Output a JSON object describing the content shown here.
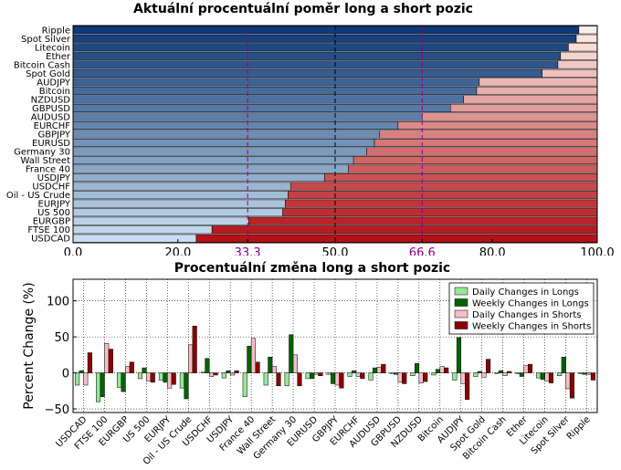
{
  "chart_data": [
    {
      "type": "bar",
      "orientation": "horizontal",
      "stacked": true,
      "title": "Aktuální procentuální poměr long a short pozic",
      "categories": [
        "Ripple",
        "Spot Silver",
        "Litecoin",
        "Ether",
        "Bitcoin Cash",
        "Spot Gold",
        "AUDJPY",
        "Bitcoin",
        "NZDUSD",
        "GBPUSD",
        "AUDUSD",
        "EURCHF",
        "GBPJPY",
        "EURUSD",
        "Germany 30",
        "Wall Street",
        "France 40",
        "USDJPY",
        "USDCHF",
        "Oil - US Crude",
        "EURJPY",
        "US 500",
        "EURGBP",
        "FTSE 100",
        "USDCAD"
      ],
      "series": [
        {
          "role": "long",
          "values": [
            96.5,
            96.0,
            94.5,
            93.0,
            92.5,
            89.5,
            77.5,
            77.0,
            74.5,
            72.0,
            66.6,
            62.0,
            58.5,
            57.5,
            56.0,
            53.5,
            52.5,
            48.0,
            41.5,
            41.0,
            40.5,
            40.0,
            33.5,
            26.5,
            23.5
          ]
        },
        {
          "role": "short",
          "values": [
            3.5,
            4.0,
            5.5,
            7.0,
            7.5,
            10.5,
            22.5,
            23.0,
            25.5,
            28.0,
            33.4,
            38.0,
            41.5,
            42.5,
            44.0,
            46.5,
            47.5,
            52.0,
            58.5,
            59.0,
            59.5,
            60.0,
            66.5,
            73.5,
            76.5
          ]
        }
      ],
      "xlim": [
        0,
        100
      ],
      "xticks": [
        "0.0",
        "20.0",
        "33.3",
        "50.0",
        "66.6",
        "80.0",
        "100.0"
      ],
      "reference_lines": [
        33.3,
        50.0,
        66.6
      ],
      "reference_colors": {
        "33.3": "#8b008b",
        "50.0": "#000000",
        "66.6": "#8b008b"
      }
    },
    {
      "type": "bar",
      "title": "Procentuální změna long a short pozic",
      "ylabel": "Percent Change (%)",
      "ylim": [
        -55,
        130
      ],
      "yticks": [
        "−50",
        "0",
        "50",
        "100"
      ],
      "grid": true,
      "legend_position": "top-right",
      "categories": [
        "USDCAD",
        "FTSE 100",
        "EURGBP",
        "US 500",
        "EURJPY",
        "Oil - US Crude",
        "USDCHF",
        "USDJPY",
        "France 40",
        "Wall Street",
        "Germany 30",
        "EURUSD",
        "GBPJPY",
        "EURCHF",
        "AUDUSD",
        "GBPUSD",
        "NZDUSD",
        "Bitcoin",
        "AUDJPY",
        "Spot Gold",
        "Bitcoin Cash",
        "Ether",
        "Litecoin",
        "Spot Silver",
        "Ripple"
      ],
      "series": [
        {
          "name": "Daily Changes in Longs",
          "color": "#98e69a",
          "values": [
            -17,
            -40,
            -20,
            -8,
            -10,
            -21,
            1,
            -7,
            -33,
            -17,
            -18,
            -8,
            -2,
            -5,
            -10,
            -1,
            -4,
            -3,
            -10,
            -5,
            -1,
            -1,
            -7,
            -4,
            -1
          ]
        },
        {
          "name": "Weekly Changes in Longs",
          "color": "#006400",
          "values": [
            3,
            -33,
            -26,
            7,
            -13,
            -36,
            20,
            3,
            37,
            22,
            53,
            -8,
            -15,
            3,
            7,
            -2,
            13,
            5,
            49,
            2,
            3,
            -5,
            -9,
            22,
            -2
          ]
        },
        {
          "name": "Daily Changes in Shorts",
          "color": "#f4bfc8",
          "values": [
            -17,
            41,
            9,
            -11,
            -21,
            39,
            -5,
            -3,
            48,
            9,
            25,
            -2,
            -17,
            -5,
            8,
            -13,
            -14,
            9,
            -15,
            -6,
            -4,
            10,
            -11,
            -22,
            -2
          ]
        },
        {
          "name": "Weekly Changes in Shorts",
          "color": "#8b0000",
          "values": [
            28,
            33,
            15,
            -13,
            -16,
            65,
            -3,
            3,
            15,
            -18,
            -18,
            -4,
            -21,
            -8,
            12,
            -15,
            -12,
            7,
            -37,
            19,
            2,
            12,
            -14,
            -35,
            -10
          ]
        }
      ]
    }
  ]
}
